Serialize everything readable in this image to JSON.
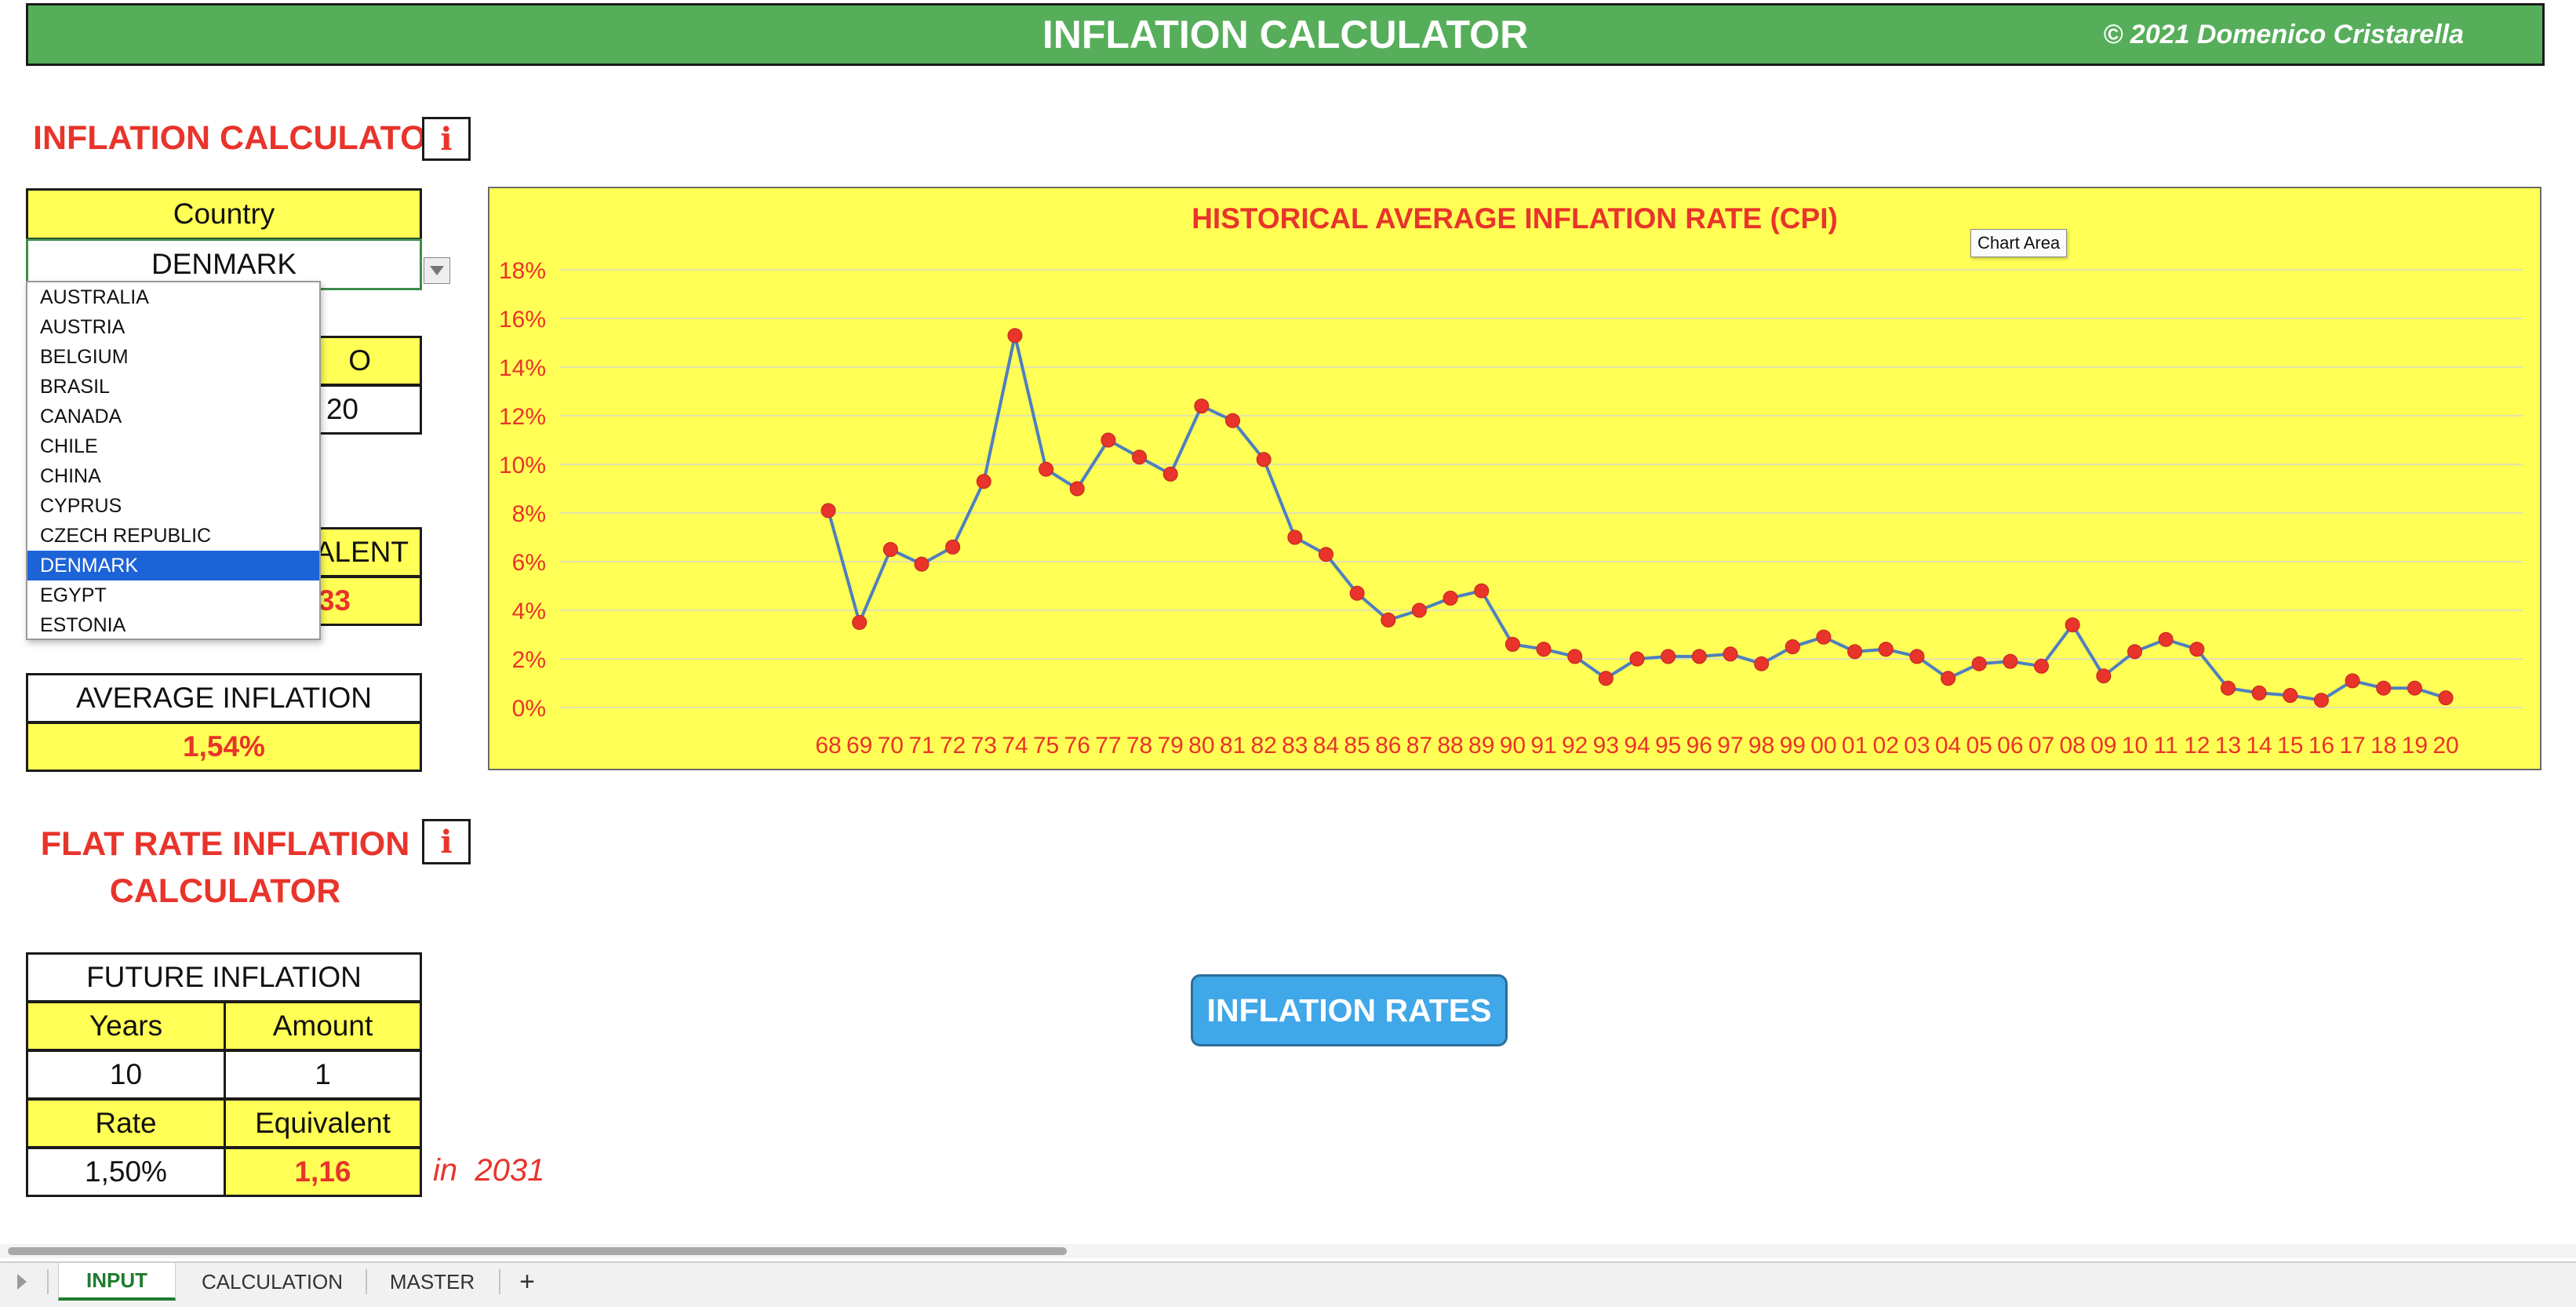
{
  "banner": {
    "title": "INFLATION CALCULATOR",
    "copyright": "© 2021 Domenico Cristarella"
  },
  "calculator": {
    "heading": "INFLATION CALCULATOR",
    "info_glyph": "i",
    "country_label": "Country",
    "country_value": "DENMARK",
    "hidden_label_fragment": "O",
    "hidden_year_fragment": "20",
    "equivalent_fragment": "ALENT",
    "equivalent_value_fragment": "33",
    "average_label": "AVERAGE INFLATION",
    "average_value": "1,54%"
  },
  "dropdown": {
    "options": [
      "AUSTRALIA",
      "AUSTRIA",
      "BELGIUM",
      "BRASIL",
      "CANADA",
      "CHILE",
      "CHINA",
      "CYPRUS",
      "CZECH REPUBLIC",
      "DENMARK",
      "EGYPT",
      "ESTONIA"
    ],
    "selected": "DENMARK"
  },
  "flat": {
    "heading_line1": "FLAT RATE INFLATION",
    "heading_line2": "CALCULATOR",
    "info_glyph": "i",
    "future_label": "FUTURE INFLATION",
    "years_label": "Years",
    "amount_label": "Amount",
    "years_value": "10",
    "amount_value": "1",
    "rate_label": "Rate",
    "equivalent_label": "Equivalent",
    "rate_value": "1,50%",
    "equivalent_value": "1,16",
    "in_label": "in  2031"
  },
  "button": {
    "label": "INFLATION RATES"
  },
  "tooltip": {
    "label": "Chart Area"
  },
  "tabs": [
    {
      "label": "INPUT",
      "active": true
    },
    {
      "label": "CALCULATION",
      "active": false
    },
    {
      "label": "MASTER",
      "active": false
    },
    {
      "label": "+",
      "active": false
    }
  ],
  "chart_data": {
    "type": "line",
    "title": "HISTORICAL AVERAGE INFLATION RATE (CPI)",
    "x": [
      "68",
      "69",
      "70",
      "71",
      "72",
      "73",
      "74",
      "75",
      "76",
      "77",
      "78",
      "79",
      "80",
      "81",
      "82",
      "83",
      "84",
      "85",
      "86",
      "87",
      "88",
      "89",
      "90",
      "91",
      "92",
      "93",
      "94",
      "95",
      "96",
      "97",
      "98",
      "99",
      "00",
      "01",
      "02",
      "03",
      "04",
      "05",
      "06",
      "07",
      "08",
      "09",
      "10",
      "11",
      "12",
      "13",
      "14",
      "15",
      "16",
      "17",
      "18",
      "19",
      "20"
    ],
    "values": [
      8.1,
      3.5,
      6.5,
      5.9,
      6.6,
      9.3,
      15.3,
      9.8,
      9.0,
      11.0,
      10.3,
      9.6,
      12.4,
      11.8,
      10.2,
      7.0,
      6.3,
      4.7,
      3.6,
      4.0,
      4.5,
      4.8,
      2.6,
      2.4,
      2.1,
      1.2,
      2.0,
      2.1,
      2.1,
      2.2,
      1.8,
      2.5,
      2.9,
      2.3,
      2.4,
      2.1,
      1.2,
      1.8,
      1.9,
      1.7,
      3.4,
      1.3,
      2.3,
      2.8,
      2.4,
      0.8,
      0.6,
      0.5,
      0.3,
      1.1,
      0.8,
      0.8,
      0.4
    ],
    "yticks": [
      "0%",
      "2%",
      "4%",
      "6%",
      "8%",
      "10%",
      "12%",
      "14%",
      "16%",
      "18%"
    ],
    "ylim": [
      0,
      18
    ],
    "grid": true,
    "line_color": "#4f7fc0",
    "marker_color": "#e8342b",
    "background": "#ffff55"
  }
}
